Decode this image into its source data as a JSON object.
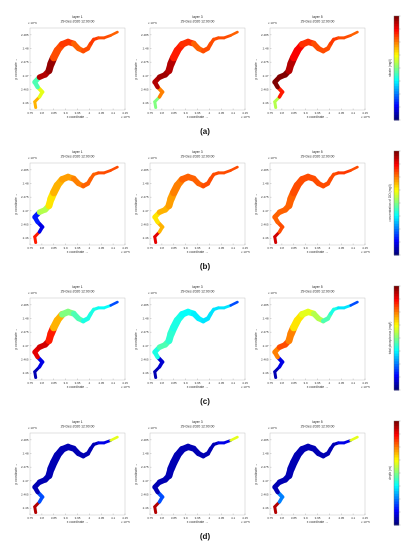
{
  "figure": {
    "rows": [
      {
        "label": "(a)",
        "panels": [
          {
            "title": "layer 1",
            "date": "29-Dec-2020 12:00:00"
          },
          {
            "title": "layer 3",
            "date": "29-Dec-2020 12:00:00"
          },
          {
            "title": "layer 5",
            "date": "29-Dec-2020 12:00:00"
          }
        ],
        "colorbar": {
          "label": "nitrate (mg/l)",
          "scheme": "jet",
          "segment_values": [
            [
              0.7,
              0.6,
              0.45,
              0.95,
              0.98,
              0.8,
              0.82,
              0.78,
              0.8,
              0.82,
              0.8,
              0.78
            ],
            [
              0.5,
              0.75,
              0.95,
              0.97,
              0.95,
              0.85,
              0.83,
              0.78,
              0.8,
              0.8,
              0.8,
              0.78
            ],
            [
              0.55,
              0.85,
              1.0,
              1.0,
              0.95,
              0.88,
              0.83,
              0.8,
              0.8,
              0.82,
              0.8,
              0.78
            ]
          ]
        }
      },
      {
        "label": "(b)",
        "panels": [
          {
            "title": "layer 1",
            "date": "29-Dec-2020 12:00:00"
          },
          {
            "title": "layer 3",
            "date": "29-Dec-2020 12:00:00"
          },
          {
            "title": "layer 5",
            "date": "29-Dec-2020 12:00:00"
          }
        ],
        "colorbar": {
          "label": "concentration of DO (mg/l)",
          "scheme": "jet",
          "segment_values": [
            [
              0.85,
              0.1,
              0.15,
              0.55,
              0.65,
              0.7,
              0.72,
              0.75,
              0.78,
              0.78,
              0.8,
              0.8
            ],
            [
              0.9,
              0.7,
              0.65,
              0.7,
              0.72,
              0.75,
              0.78,
              0.78,
              0.8,
              0.8,
              0.8,
              0.8
            ],
            [
              0.92,
              0.8,
              0.78,
              0.78,
              0.78,
              0.8,
              0.8,
              0.8,
              0.8,
              0.8,
              0.82,
              0.8
            ]
          ]
        }
      },
      {
        "label": "(c)",
        "panels": [
          {
            "title": "layer 1",
            "date": "29-Dec-2020 12:00:00"
          },
          {
            "title": "layer 3",
            "date": "29-Dec-2020 12:00:00"
          },
          {
            "title": "layer 5",
            "date": "29-Dec-2020 12:00:00"
          }
        ],
        "colorbar": {
          "label": "total phosphorus (mg/l)",
          "scheme": "jet",
          "segment_values": [
            [
              0.05,
              0.1,
              0.9,
              0.92,
              0.85,
              0.7,
              0.5,
              0.45,
              0.4,
              0.4,
              0.38,
              0.2
            ],
            [
              0.05,
              0.08,
              0.4,
              0.45,
              0.42,
              0.4,
              0.38,
              0.36,
              0.35,
              0.35,
              0.35,
              0.2
            ],
            [
              0.05,
              0.1,
              0.75,
              0.8,
              0.75,
              0.65,
              0.6,
              0.55,
              0.45,
              0.4,
              0.35,
              0.2
            ]
          ]
        }
      },
      {
        "label": "(d)",
        "panels": [
          {
            "title": "layer 1",
            "date": "29-Dec-2020 12:00:00"
          },
          {
            "title": "layer 3",
            "date": "29-Dec-2020 12:00:00"
          },
          {
            "title": "layer 5",
            "date": "29-Dec-2020 12:00:00"
          }
        ],
        "colorbar": {
          "label": "depth (m)",
          "scheme": "jet",
          "segment_values": [
            [
              0.95,
              0.2,
              0.05,
              0.05,
              0.05,
              0.05,
              0.05,
              0.05,
              0.05,
              0.05,
              0.1,
              0.6
            ],
            [
              0.95,
              0.2,
              0.05,
              0.05,
              0.05,
              0.05,
              0.05,
              0.05,
              0.05,
              0.05,
              0.1,
              0.6
            ],
            [
              0.95,
              0.25,
              0.05,
              0.05,
              0.05,
              0.05,
              0.05,
              0.05,
              0.05,
              0.05,
              0.1,
              0.6
            ]
          ]
        }
      }
    ],
    "axes": {
      "xlabel": "x coordinate →",
      "ylabel": "y coordinate →",
      "x_exponent": "x 10^5",
      "y_exponent": "x 10^6",
      "x_ticks": [
        "3.75",
        "3.8",
        "3.85",
        "3.9",
        "3.95",
        "4",
        "4.05",
        "4.1",
        "4.15"
      ],
      "y_ticks": [
        "2.46",
        "2.465",
        "2.47",
        "2.475",
        "2.48",
        "2.485"
      ]
    }
  }
}
